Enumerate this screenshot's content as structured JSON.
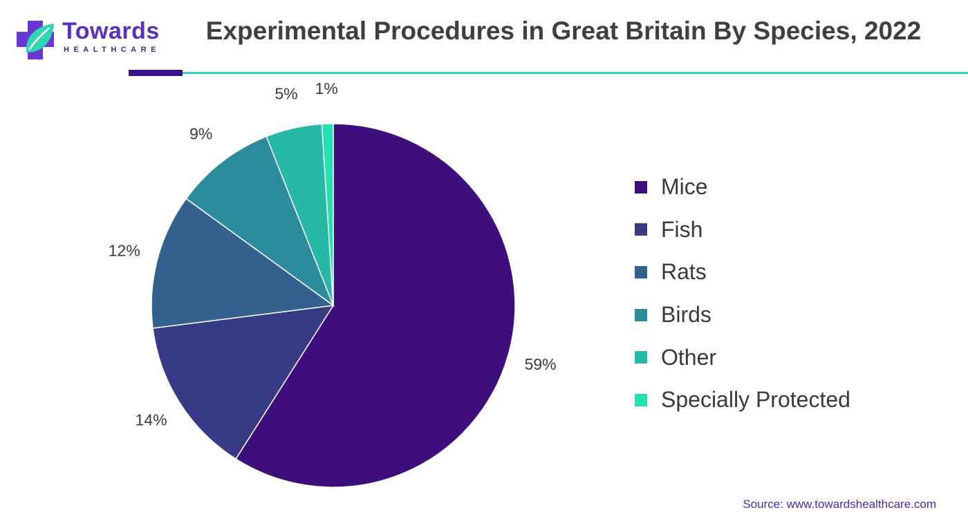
{
  "brand": {
    "name": "Towards",
    "tagline": "HEALTHCARE",
    "colors": {
      "primary": "#5a2fc2",
      "accent_bar": "#3a1289",
      "rule": "#2ed6b4"
    }
  },
  "title": "Experimental Procedures in Great Britain By Species, 2022",
  "source": "Source: www.towardshealthcare.com",
  "chart_data": {
    "type": "pie",
    "title": "Experimental Procedures in Great Britain By Species, 2022",
    "legend_position": "right",
    "categories": [
      "Mice",
      "Fish",
      "Rats",
      "Birds",
      "Other",
      "Specially Protected"
    ],
    "values": [
      59,
      14,
      12,
      9,
      5,
      1
    ],
    "labels": [
      "59%",
      "14%",
      "12%",
      "9%",
      "5%",
      "1%"
    ],
    "colors": [
      "#3e0e7c",
      "#383a86",
      "#33628f",
      "#2d8c9b",
      "#27b8a6",
      "#23e0b0"
    ]
  }
}
